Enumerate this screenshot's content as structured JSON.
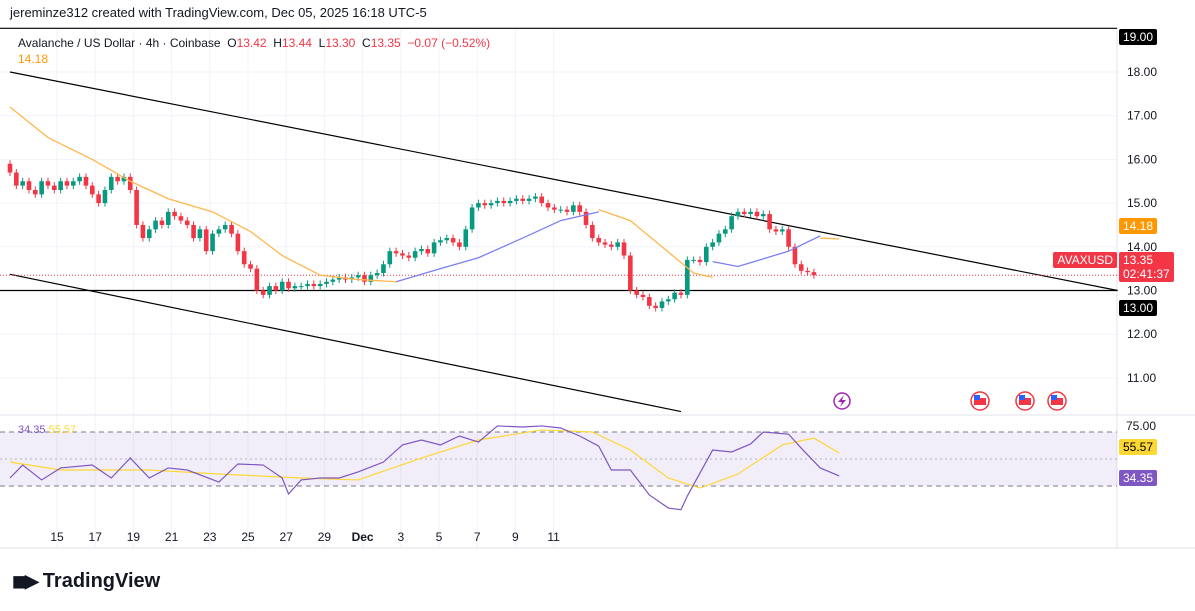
{
  "credit": "jereminze312 created with TradingView.com, Dec 05, 2025 16:18 UTC-5",
  "legend": {
    "symbol": "Avalanche / US Dollar · 4h · Coinbase",
    "o_label": "O",
    "o": "13.42",
    "h_label": "H",
    "h": "13.44",
    "l_label": "L",
    "l": "13.30",
    "c_label": "C",
    "c": "13.35",
    "change": "−0.07 (−0.52%)",
    "ma_value": "14.18"
  },
  "colors": {
    "up": "#089981",
    "down": "#f23645",
    "ma_orange": "#ffb74d",
    "ma_blue": "#7b7ff0",
    "rsi": "#7e57c2",
    "rsi_ma": "#fdd835",
    "accent_orange": "#ff9800"
  },
  "labels": {
    "level_19": "19.00",
    "level_13": "13.00",
    "ma_tag": "14.18",
    "symbol_tag": "AVAXUSD",
    "price_tag": "13.35",
    "countdown": "02:41:37",
    "rsi_val": "34.35",
    "rsi_ma_val": "55.57",
    "rsi_75": "75.00"
  },
  "event_icons": [
    "lightning-icon",
    "us-flag-icon",
    "us-flag-icon",
    "us-flag-icon"
  ],
  "logo": "TradingView",
  "chart_data": [
    {
      "type": "candlestick",
      "title": "Avalanche / US Dollar · 4h · Coinbase",
      "y_ticks": [
        "18.00",
        "17.00",
        "16.00",
        "15.00",
        "14.00",
        "13.00",
        "12.00",
        "11.00"
      ],
      "ylim": [
        10.3,
        19.1
      ],
      "x_ticks": [
        "15",
        "17",
        "19",
        "21",
        "23",
        "25",
        "27",
        "29",
        "Dec",
        "3",
        "5",
        "7",
        "9",
        "11"
      ],
      "first_open": 15.9,
      "close": [
        15.7,
        15.4,
        15.5,
        15.3,
        15.2,
        15.5,
        15.4,
        15.3,
        15.5,
        15.4,
        15.5,
        15.6,
        15.4,
        15.2,
        15.0,
        15.3,
        15.6,
        15.5,
        15.6,
        15.3,
        14.5,
        14.2,
        14.4,
        14.6,
        14.5,
        14.8,
        14.7,
        14.6,
        14.5,
        14.2,
        14.4,
        13.9,
        14.3,
        14.4,
        14.5,
        14.3,
        13.9,
        13.6,
        13.5,
        13.0,
        12.9,
        13.1,
        13.0,
        13.2,
        13.05,
        13.1,
        13.1,
        13.15,
        13.1,
        13.15,
        13.2,
        13.25,
        13.3,
        13.25,
        13.3,
        13.35,
        13.2,
        13.35,
        13.4,
        13.6,
        13.9,
        13.85,
        13.8,
        13.75,
        13.9,
        13.95,
        13.85,
        14.1,
        14.15,
        14.2,
        14.1,
        14.0,
        14.4,
        14.9,
        15.0,
        14.95,
        15.0,
        15.05,
        15.0,
        15.05,
        15.1,
        15.05,
        15.1,
        15.15,
        15.0,
        14.9,
        14.85,
        14.85,
        14.8,
        14.95,
        14.8,
        14.5,
        14.2,
        14.1,
        14.05,
        14.0,
        14.1,
        13.8,
        13.0,
        12.9,
        12.85,
        12.65,
        12.6,
        12.75,
        12.8,
        12.95,
        12.9,
        13.7,
        13.7,
        13.65,
        14.0,
        14.1,
        14.3,
        14.4,
        14.7,
        14.8,
        14.75,
        14.8,
        14.7,
        14.75,
        14.4,
        14.35,
        14.4,
        14.0,
        13.6,
        13.45,
        13.42,
        13.35
      ],
      "moving_average": [
        [
          0,
          17.2,
          "orange"
        ],
        [
          6,
          16.5,
          "orange"
        ],
        [
          13,
          16.0,
          "orange"
        ],
        [
          19,
          15.5,
          "orange"
        ],
        [
          25,
          15.1,
          "orange"
        ],
        [
          32,
          14.8,
          "orange"
        ],
        [
          38,
          14.35,
          "orange"
        ],
        [
          43,
          13.8,
          "orange"
        ],
        [
          49,
          13.35,
          "orange"
        ],
        [
          55,
          13.25,
          "orange"
        ],
        [
          61,
          13.2,
          "orange"
        ],
        [
          61,
          13.2,
          "blue"
        ],
        [
          68,
          13.5,
          "blue"
        ],
        [
          74,
          13.75,
          "blue"
        ],
        [
          81,
          14.2,
          "blue"
        ],
        [
          87,
          14.6,
          "blue"
        ],
        [
          93,
          14.8,
          "blue"
        ],
        [
          93,
          14.85,
          "orange"
        ],
        [
          98,
          14.6,
          "orange"
        ],
        [
          103,
          14.0,
          "orange"
        ],
        [
          108,
          13.4,
          "orange"
        ],
        [
          111,
          13.3,
          "orange"
        ],
        [
          111,
          13.66,
          "blue"
        ],
        [
          115,
          13.55,
          "blue"
        ],
        [
          123,
          13.9,
          "blue"
        ],
        [
          128,
          14.25,
          "blue"
        ],
        [
          128,
          14.2,
          "orange"
        ],
        [
          131,
          14.18,
          "orange"
        ]
      ],
      "trendlines": [
        {
          "from": [
            0,
            18.0
          ],
          "to": [
            175,
            13.0
          ]
        },
        {
          "from": [
            0,
            13.37
          ],
          "to": [
            106,
            10.23
          ]
        }
      ],
      "horizontal_levels": [
        19.0,
        13.0
      ],
      "rsi": {
        "ylim": [
          0,
          90
        ],
        "levels": [
          75,
          50,
          25
        ],
        "values": [
          [
            0,
            32.4
          ],
          [
            2,
            44.4
          ],
          [
            5,
            30.6
          ],
          [
            8,
            41.7
          ],
          [
            13,
            44.4
          ],
          [
            16,
            32.4
          ],
          [
            19,
            50.9
          ],
          [
            22,
            32.4
          ],
          [
            25,
            41.7
          ],
          [
            28,
            39.8
          ],
          [
            33,
            28.7
          ],
          [
            36,
            45.4
          ],
          [
            40,
            44.4
          ],
          [
            43,
            32.4
          ],
          [
            44,
            17.6
          ],
          [
            46,
            30.6
          ],
          [
            49,
            32.4
          ],
          [
            52,
            32.4
          ],
          [
            55,
            38
          ],
          [
            59,
            47.2
          ],
          [
            62,
            63
          ],
          [
            65,
            67.6
          ],
          [
            68,
            63
          ],
          [
            71,
            71.3
          ],
          [
            74,
            65.7
          ],
          [
            77,
            80.6
          ],
          [
            81,
            79.6
          ],
          [
            84,
            80.6
          ],
          [
            87,
            78.7
          ],
          [
            90,
            71.3
          ],
          [
            93,
            62
          ],
          [
            95,
            39.8
          ],
          [
            98,
            39.8
          ],
          [
            101,
            16.7
          ],
          [
            104,
            4.6
          ],
          [
            106,
            3
          ],
          [
            107,
            15.7
          ],
          [
            111,
            58.3
          ],
          [
            114,
            56.5
          ],
          [
            117,
            63.9
          ],
          [
            119,
            75
          ],
          [
            123,
            73
          ],
          [
            125,
            60
          ],
          [
            128,
            41.7
          ],
          [
            131,
            34.35
          ]
        ],
        "ma": [
          [
            0,
            47.2
          ],
          [
            8,
            39.8
          ],
          [
            22,
            39.8
          ],
          [
            33,
            36.1
          ],
          [
            46,
            32.4
          ],
          [
            55,
            30.6
          ],
          [
            65,
            50.9
          ],
          [
            74,
            67.6
          ],
          [
            84,
            76.9
          ],
          [
            92,
            75
          ],
          [
            98,
            58.3
          ],
          [
            104,
            32.4
          ],
          [
            109,
            23.1
          ],
          [
            115,
            36.1
          ],
          [
            122,
            63
          ],
          [
            127,
            69.4
          ],
          [
            131,
            55.57
          ]
        ]
      }
    }
  ]
}
